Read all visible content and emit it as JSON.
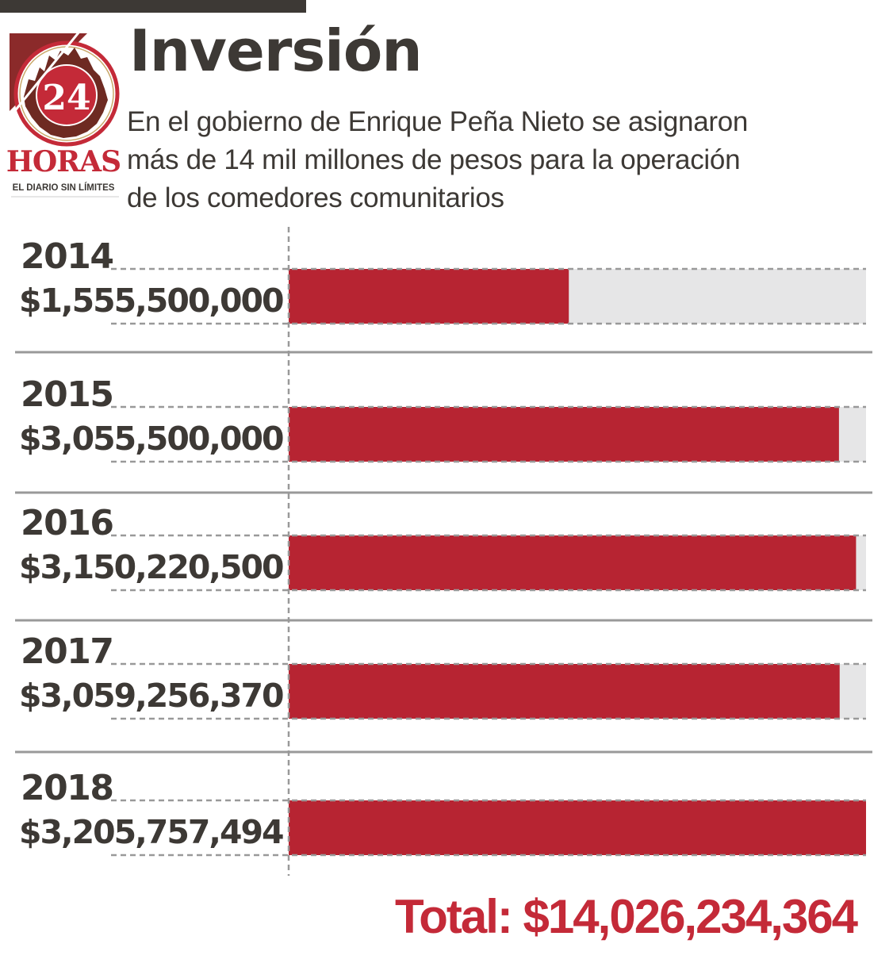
{
  "header": {
    "title": "Inversión",
    "subtitle_lines": [
      "En el gobierno de Enrique Peña Nieto se asignaron",
      "más de 14 mil millones de pesos para la operación",
      "de los comedores comunitarios"
    ]
  },
  "logo": {
    "number": "24",
    "name": "HORAS",
    "tagline": "EL DIARIO SIN LÍMITES"
  },
  "colors": {
    "bar": "#b72432",
    "track": "#e6e6e7",
    "text": "#3d3935",
    "accent": "#c42a38",
    "rule": "#999999"
  },
  "chart_data": {
    "type": "bar",
    "orientation": "horizontal",
    "title": "Inversión",
    "categories": [
      "2014",
      "2015",
      "2016",
      "2017",
      "2018"
    ],
    "value_labels": [
      "$1,555,500,000",
      "$3,055,500,000",
      "$3,150,220,500",
      "$3,059,256,370",
      "$3,205,757,494"
    ],
    "values": [
      1555500000,
      3055500000,
      3150220500,
      3059256370,
      3205757494
    ],
    "xlim": [
      0,
      3205757494
    ],
    "unit": "pesos",
    "grid": false
  },
  "total": {
    "label": "Total: $14,026,234,364"
  }
}
